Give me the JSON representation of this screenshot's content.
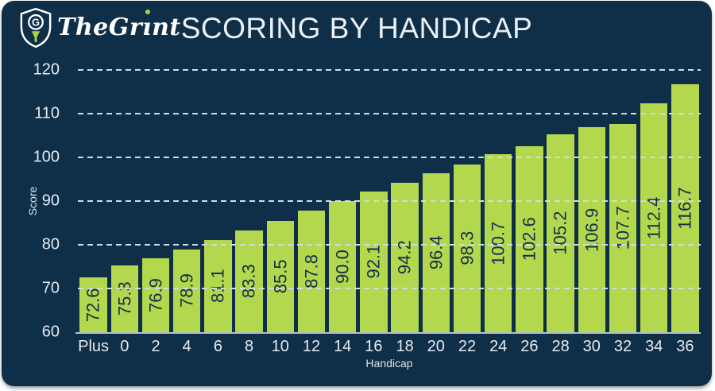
{
  "brand": {
    "name": "TheGrint",
    "logo_icon": "shield-golf-tee-icon",
    "logo_colors": {
      "outline": "#ffffff",
      "tee_green": "#a9d24a"
    }
  },
  "chart_data": {
    "type": "bar",
    "title": "SCORING BY HANDICAP",
    "xlabel": "Handicap",
    "ylabel": "Score",
    "categories": [
      "Plus",
      "0",
      "2",
      "4",
      "6",
      "8",
      "10",
      "12",
      "14",
      "16",
      "18",
      "20",
      "22",
      "24",
      "26",
      "28",
      "30",
      "32",
      "34",
      "36"
    ],
    "values": [
      72.6,
      75.3,
      76.9,
      78.9,
      81.1,
      83.3,
      85.5,
      87.8,
      90.0,
      92.1,
      94.2,
      96.4,
      98.3,
      100.7,
      102.6,
      105.2,
      106.9,
      107.7,
      112.4,
      116.7
    ],
    "value_label_decimals": 1,
    "ylim": [
      60,
      120
    ],
    "yticks": [
      60,
      70,
      80,
      90,
      100,
      110,
      120
    ],
    "grid": "dashed horizontal, drawn over bars",
    "legend": null,
    "colors": {
      "background": "#0f2e47",
      "bar": "#b3d74d",
      "bar_value_text": "#13304a",
      "axis_text": "#e4ebf1",
      "gridline": "#d2dbe1",
      "axis_line": "#b4c0c8",
      "title_text": "#eaf0f5"
    }
  }
}
